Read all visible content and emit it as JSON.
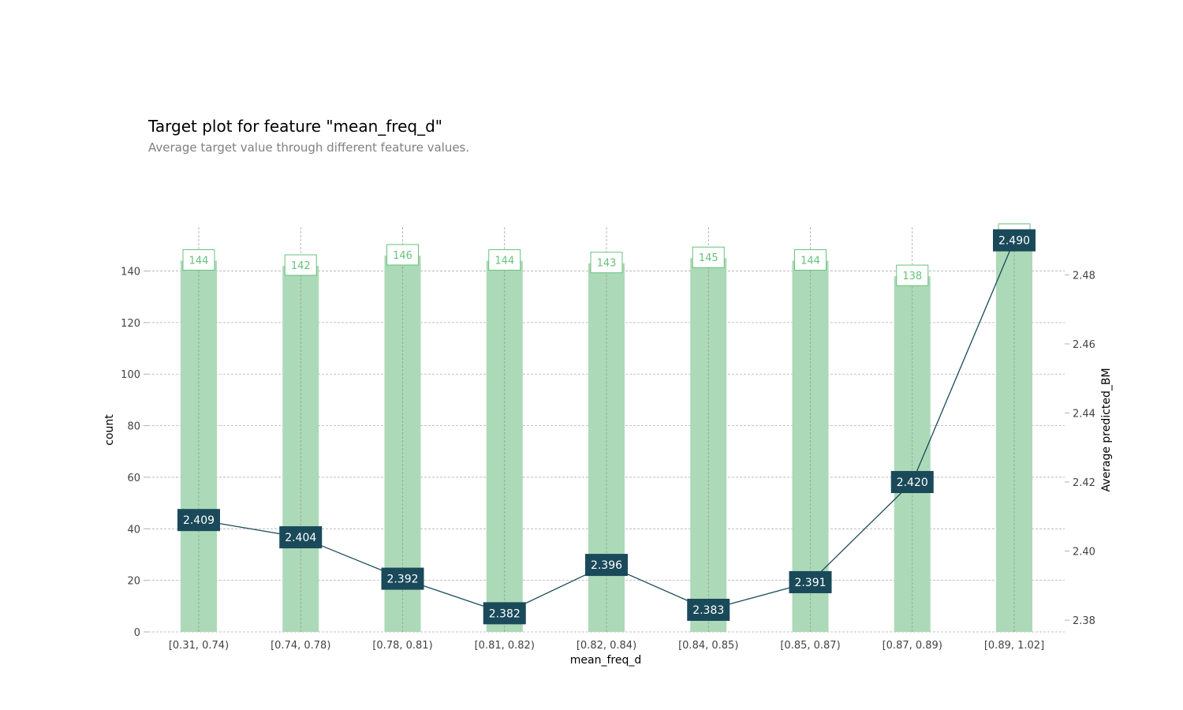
{
  "header": {
    "title": "Target plot for feature \"mean_freq_d\"",
    "subtitle": "Average target value through different feature values."
  },
  "chart_data": {
    "type": "bar",
    "title": "Target plot for feature \"mean_freq_d\"",
    "subtitle": "Average target value through different feature values.",
    "xlabel": "mean_freq_d",
    "ylabel": "count",
    "y2label": "Average predicted_BM",
    "categories": [
      "[0.31, 0.74)",
      "[0.74, 0.78)",
      "[0.78, 0.81)",
      "[0.81, 0.82)",
      "[0.82, 0.84)",
      "[0.84, 0.85)",
      "[0.85, 0.87)",
      "[0.87, 0.89)",
      "[0.89, 1.02]"
    ],
    "series": [
      {
        "name": "count",
        "type": "bar",
        "axis": "left",
        "values": [
          144,
          142,
          146,
          144,
          143,
          145,
          144,
          138,
          154
        ],
        "labels": [
          "144",
          "142",
          "146",
          "144",
          "143",
          "145",
          "144",
          "138",
          ""
        ]
      },
      {
        "name": "Average predicted_BM",
        "type": "line",
        "axis": "right",
        "values": [
          2.409,
          2.404,
          2.392,
          2.382,
          2.396,
          2.383,
          2.391,
          2.42,
          2.49
        ],
        "labels": [
          "2.409",
          "2.404",
          "2.392",
          "2.382",
          "2.396",
          "2.383",
          "2.391",
          "2.420",
          "2.490"
        ]
      }
    ],
    "ylim": [
      0,
      157
    ],
    "yticks": [
      0,
      20,
      40,
      60,
      80,
      100,
      120,
      140
    ],
    "y2lim": [
      2.3766,
      2.4938
    ],
    "y2ticks": [
      "2.38",
      "2.40",
      "2.42",
      "2.44",
      "2.46",
      "2.48"
    ],
    "grid": true,
    "colors": {
      "bar": "#acd9b7",
      "bar_label": "#66c27a",
      "line": "#1a4a5a",
      "line_label_bg": "#1a4a5a",
      "line_label_text": "#ffffff",
      "grid": "#b0b0b0",
      "tick_text": "#424242"
    }
  }
}
